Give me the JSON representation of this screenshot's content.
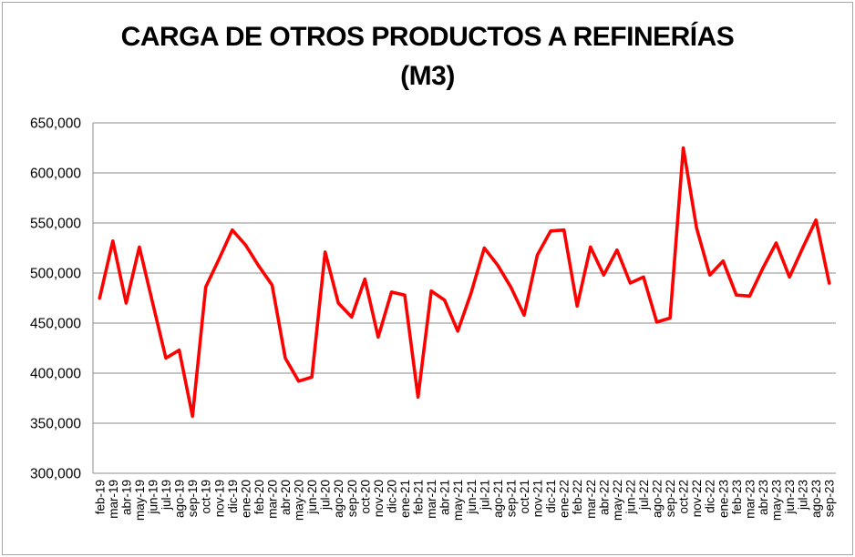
{
  "chart_data": {
    "type": "line",
    "title": "CARGA DE OTROS PRODUCTOS A REFINERÍAS (M3)",
    "title_lines": [
      "CARGA DE OTROS PRODUCTOS A REFINERÍAS",
      "(M3)"
    ],
    "xlabel": "",
    "ylabel": "",
    "legend": "none",
    "grid": "horizontal",
    "line_color": "#ff0000",
    "grid_color": "#8c8c8c",
    "text_color": "#000000",
    "ylim": [
      300000,
      650000
    ],
    "ytick_step": 50000,
    "ytick_labels": [
      "650,000",
      "600,000",
      "550,000",
      "500,000",
      "450,000",
      "400,000",
      "350,000",
      "300,000"
    ],
    "categories": [
      "feb-19",
      "mar-19",
      "abr-19",
      "may-19",
      "jun-19",
      "jul-19",
      "ago-19",
      "sep-19",
      "oct-19",
      "nov-19",
      "dic-19",
      "ene-20",
      "feb-20",
      "mar-20",
      "abr-20",
      "may-20",
      "jun-20",
      "jul-20",
      "ago-20",
      "sep-20",
      "oct-20",
      "nov-20",
      "dic-20",
      "ene-21",
      "feb-21",
      "mar-21",
      "abr-21",
      "may-21",
      "jun-21",
      "jul-21",
      "ago-21",
      "sep-21",
      "oct-21",
      "nov-21",
      "dic-21",
      "ene-22",
      "feb-22",
      "mar-22",
      "abr-22",
      "may-22",
      "jun-22",
      "jul-22",
      "ago-22",
      "sep-22",
      "oct-22",
      "nov-22",
      "dic-22",
      "ene-23",
      "feb-23",
      "mar-23",
      "abr-23",
      "may-23",
      "jun-23",
      "jul-23",
      "ago-23",
      "sep-23"
    ],
    "values": [
      475000,
      532000,
      470000,
      526000,
      470000,
      415000,
      423000,
      357000,
      486000,
      514000,
      543000,
      528000,
      507000,
      488000,
      415000,
      392000,
      396000,
      521000,
      470000,
      456000,
      494000,
      436000,
      481000,
      478000,
      376000,
      482000,
      473000,
      442000,
      480000,
      525000,
      508000,
      486000,
      458000,
      518000,
      542000,
      543000,
      467000,
      526000,
      498000,
      523000,
      490000,
      496000,
      451000,
      455000,
      625000,
      545000,
      498000,
      512000,
      478000,
      477000,
      505000,
      530000,
      496000,
      525000,
      553000,
      490000
    ]
  }
}
